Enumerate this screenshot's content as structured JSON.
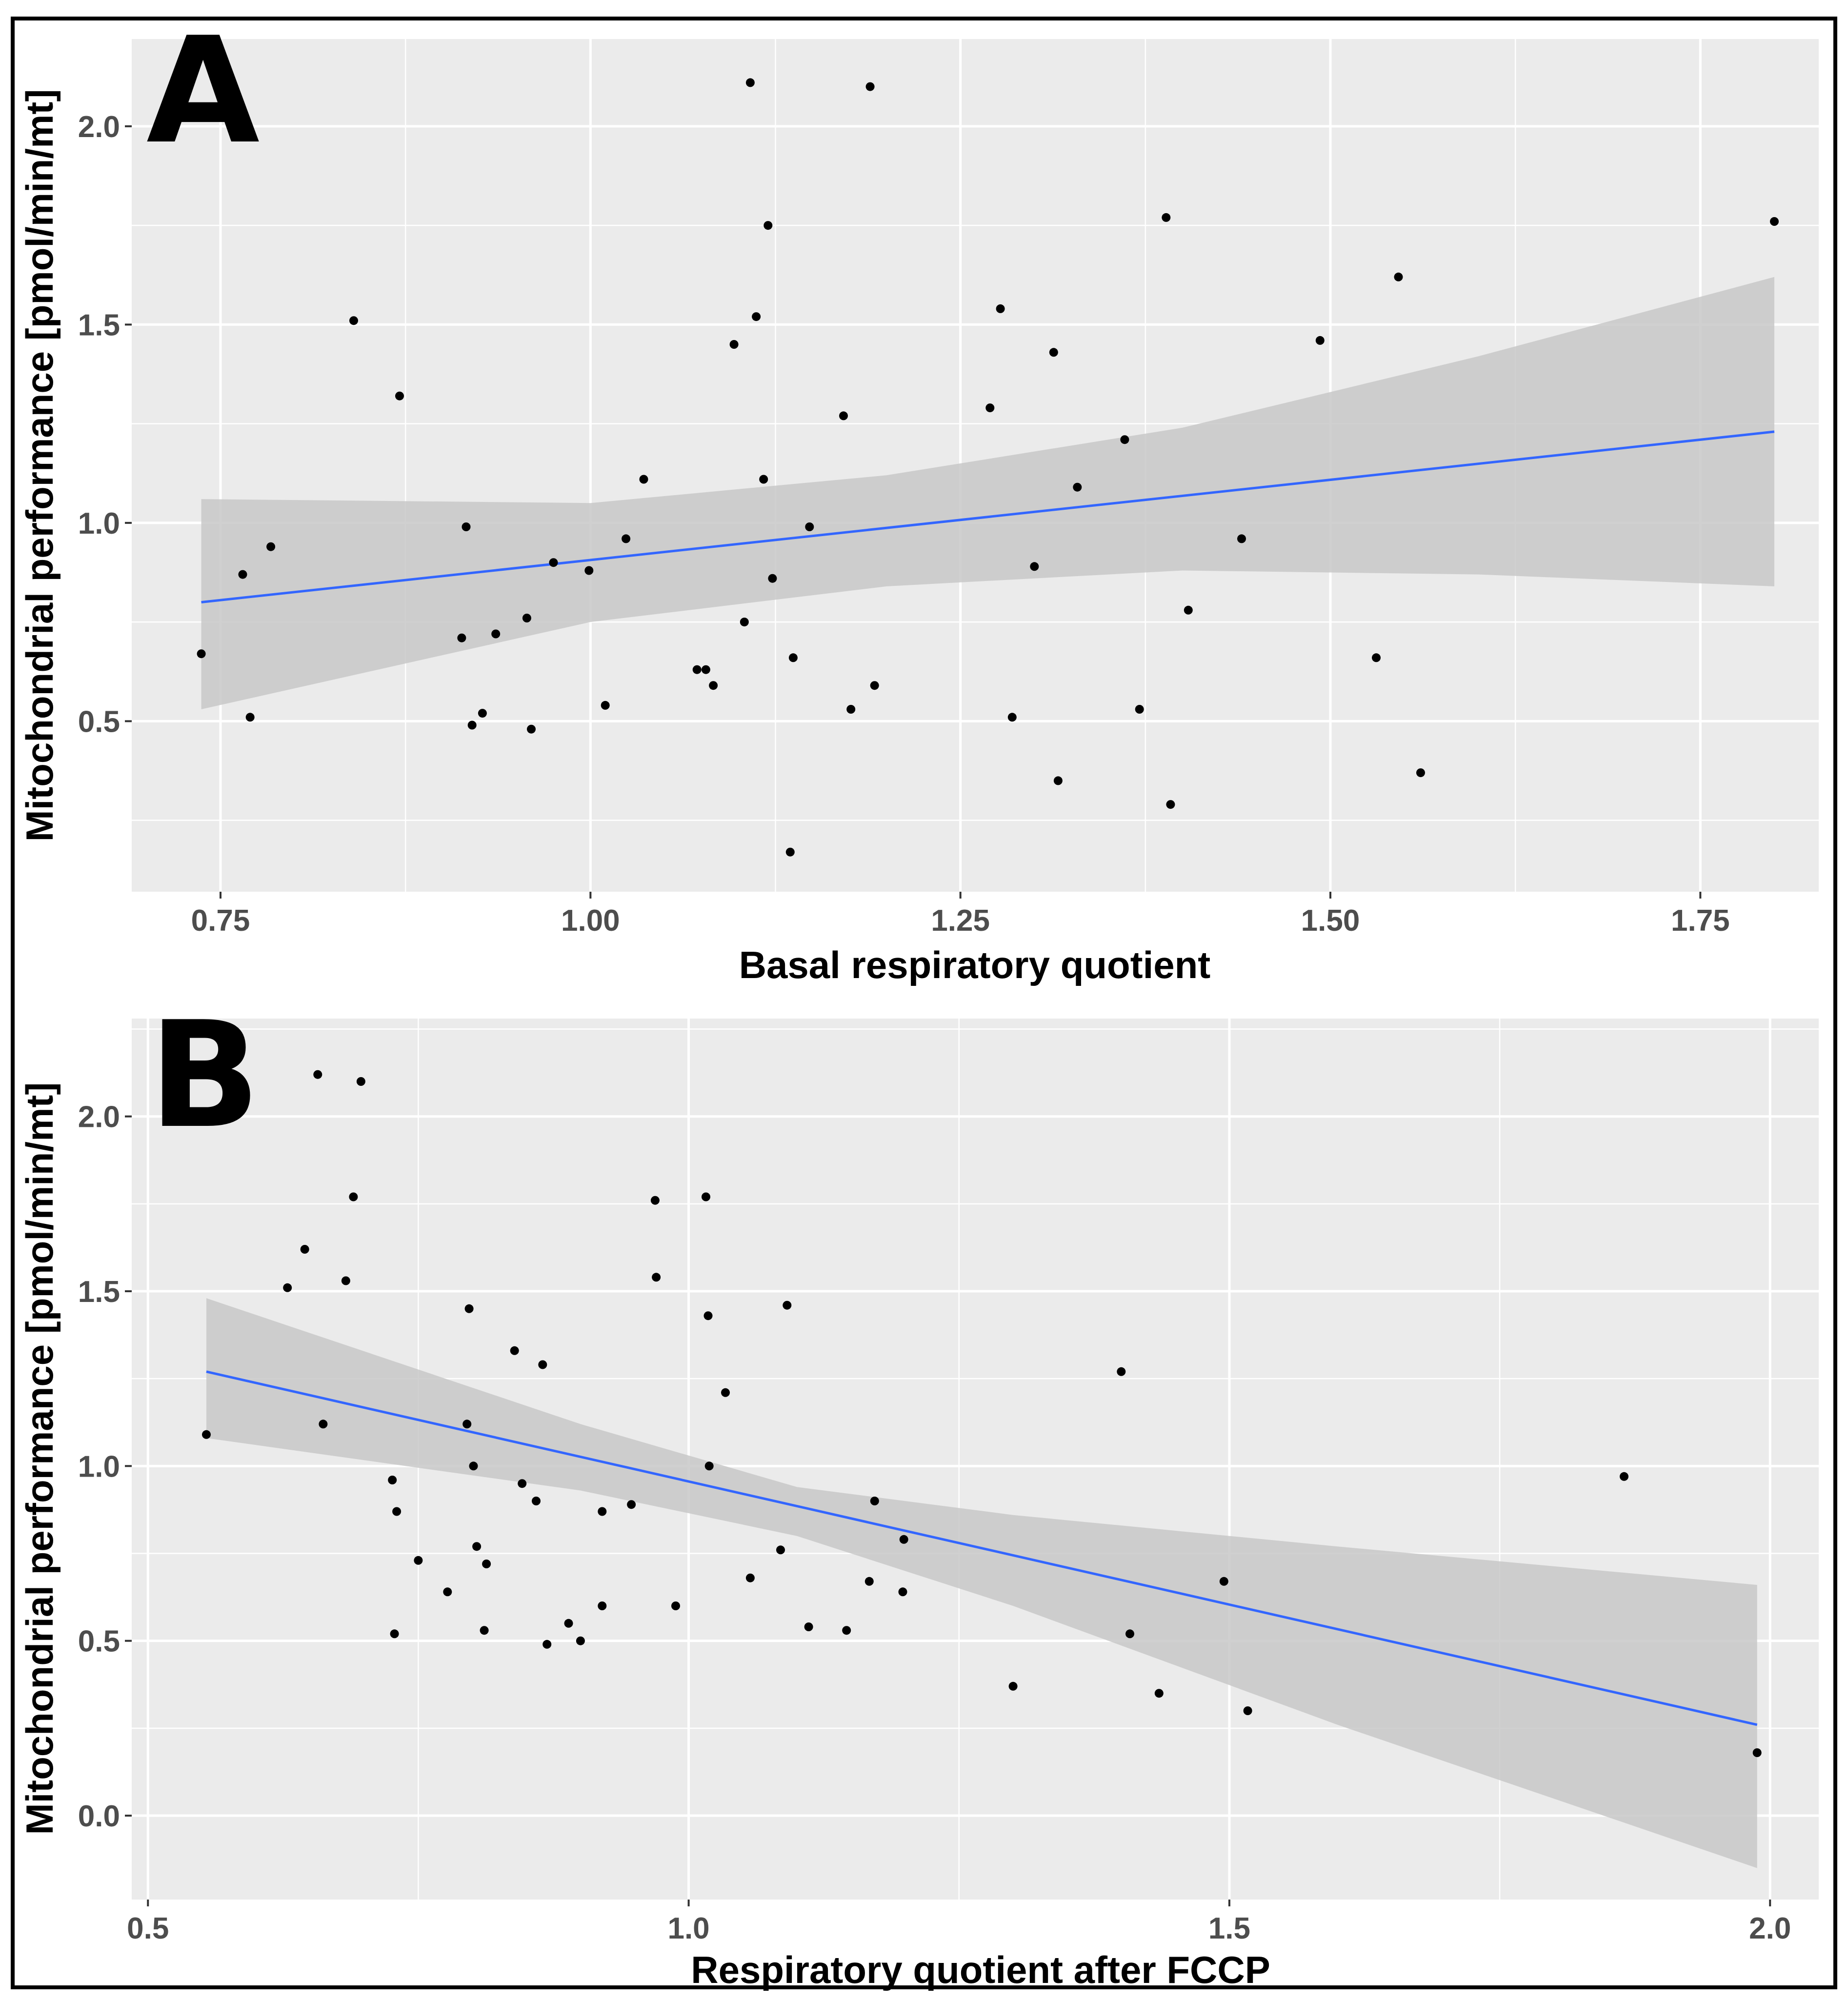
{
  "colors": {
    "panel_bg": "#ebebeb",
    "grid_major": "#ffffff",
    "ribbon": "#c8c8c8",
    "fit_line": "#3366ff",
    "point": "#000000",
    "frame": "#000000"
  },
  "chart_data": [
    {
      "type": "scatter",
      "panel_label": "A",
      "xlabel": "Basal respiratory quotient",
      "ylabel": "Mitochondrial performance [pmol/min/mt]",
      "xlim": [
        0.69,
        1.83
      ],
      "ylim": [
        0.07,
        2.22
      ],
      "x_ticks": [
        0.75,
        1.0,
        1.25,
        1.5,
        1.75
      ],
      "x_tick_labels": [
        "0.75",
        "1.00",
        "1.25",
        "1.50",
        "1.75"
      ],
      "y_ticks": [
        0.5,
        1.0,
        1.5,
        2.0
      ],
      "y_tick_labels": [
        "0.5",
        "1.0",
        "1.5",
        "2.0"
      ],
      "grid": true,
      "points": [
        [
          0.737,
          0.67
        ],
        [
          0.765,
          0.87
        ],
        [
          0.77,
          0.51
        ],
        [
          0.784,
          0.94
        ],
        [
          0.84,
          1.51
        ],
        [
          0.871,
          1.32
        ],
        [
          0.913,
          0.71
        ],
        [
          0.916,
          0.99
        ],
        [
          0.92,
          0.49
        ],
        [
          0.927,
          0.52
        ],
        [
          0.936,
          0.72
        ],
        [
          0.957,
          0.76
        ],
        [
          0.96,
          0.48
        ],
        [
          0.975,
          0.9
        ],
        [
          0.999,
          0.88
        ],
        [
          1.01,
          0.54
        ],
        [
          1.024,
          0.96
        ],
        [
          1.036,
          1.11
        ],
        [
          1.072,
          0.63
        ],
        [
          1.078,
          0.63
        ],
        [
          1.083,
          0.59
        ],
        [
          1.097,
          1.45
        ],
        [
          1.104,
          0.75
        ],
        [
          1.108,
          2.11
        ],
        [
          1.112,
          1.52
        ],
        [
          1.117,
          1.11
        ],
        [
          1.12,
          1.75
        ],
        [
          1.123,
          0.86
        ],
        [
          1.135,
          0.17
        ],
        [
          1.137,
          0.66
        ],
        [
          1.148,
          0.99
        ],
        [
          1.171,
          1.27
        ],
        [
          1.176,
          0.53
        ],
        [
          1.189,
          2.1
        ],
        [
          1.192,
          0.59
        ],
        [
          1.27,
          1.29
        ],
        [
          1.277,
          1.54
        ],
        [
          1.285,
          0.51
        ],
        [
          1.3,
          0.89
        ],
        [
          1.313,
          1.43
        ],
        [
          1.316,
          0.35
        ],
        [
          1.329,
          1.09
        ],
        [
          1.361,
          1.21
        ],
        [
          1.371,
          0.53
        ],
        [
          1.389,
          1.77
        ],
        [
          1.392,
          0.29
        ],
        [
          1.404,
          0.78
        ],
        [
          1.44,
          0.96
        ],
        [
          1.493,
          1.46
        ],
        [
          1.531,
          0.66
        ],
        [
          1.546,
          1.62
        ],
        [
          1.561,
          0.37
        ],
        [
          1.8,
          1.76
        ]
      ],
      "fit": {
        "x": [
          0.737,
          1.8
        ],
        "y": [
          0.8,
          1.23
        ]
      },
      "ribbon": {
        "x": [
          0.737,
          1.0,
          1.2,
          1.4,
          1.6,
          1.8
        ],
        "lower": [
          0.53,
          0.75,
          0.84,
          0.88,
          0.87,
          0.84
        ],
        "upper": [
          1.06,
          1.05,
          1.12,
          1.24,
          1.42,
          1.62
        ]
      }
    },
    {
      "type": "scatter",
      "panel_label": "B",
      "xlabel": "Respiratory quotient after FCCP",
      "ylabel": "Mitochondrial performance [pmol/min/mt]",
      "xlim": [
        0.485,
        2.045
      ],
      "ylim": [
        -0.24,
        2.28
      ],
      "x_ticks": [
        0.5,
        1.0,
        1.5,
        2.0
      ],
      "x_tick_labels": [
        "0.5",
        "1.0",
        "1.5",
        "2.0"
      ],
      "y_ticks": [
        0.0,
        0.5,
        1.0,
        1.5,
        2.0
      ],
      "y_tick_labels": [
        "0.0",
        "0.5",
        "1.0",
        "1.5",
        "2.0"
      ],
      "grid": true,
      "points": [
        [
          0.554,
          1.09
        ],
        [
          0.629,
          1.51
        ],
        [
          0.645,
          1.62
        ],
        [
          0.657,
          2.12
        ],
        [
          0.662,
          1.12
        ],
        [
          0.683,
          1.53
        ],
        [
          0.69,
          1.77
        ],
        [
          0.697,
          2.1
        ],
        [
          0.726,
          0.96
        ],
        [
          0.728,
          0.52
        ],
        [
          0.73,
          0.87
        ],
        [
          0.75,
          0.73
        ],
        [
          0.777,
          0.64
        ],
        [
          0.795,
          1.12
        ],
        [
          0.797,
          1.45
        ],
        [
          0.801,
          1.0
        ],
        [
          0.804,
          0.77
        ],
        [
          0.811,
          0.53
        ],
        [
          0.813,
          0.72
        ],
        [
          0.839,
          1.33
        ],
        [
          0.846,
          0.95
        ],
        [
          0.859,
          0.9
        ],
        [
          0.865,
          1.29
        ],
        [
          0.869,
          0.49
        ],
        [
          0.889,
          0.55
        ],
        [
          0.9,
          0.5
        ],
        [
          0.92,
          0.6
        ],
        [
          0.92,
          0.87
        ],
        [
          0.947,
          0.89
        ],
        [
          0.969,
          1.76
        ],
        [
          0.97,
          1.54
        ],
        [
          0.988,
          0.6
        ],
        [
          1.016,
          1.77
        ],
        [
          1.018,
          1.43
        ],
        [
          1.019,
          1.0
        ],
        [
          1.034,
          1.21
        ],
        [
          1.057,
          0.68
        ],
        [
          1.085,
          0.76
        ],
        [
          1.091,
          1.46
        ],
        [
          1.111,
          0.54
        ],
        [
          1.146,
          0.53
        ],
        [
          1.167,
          0.67
        ],
        [
          1.172,
          0.9
        ],
        [
          1.199,
          0.79
        ],
        [
          1.198,
          0.64
        ],
        [
          1.3,
          0.37
        ],
        [
          1.4,
          1.27
        ],
        [
          1.408,
          0.52
        ],
        [
          1.435,
          0.35
        ],
        [
          1.495,
          0.67
        ],
        [
          1.517,
          0.3
        ],
        [
          1.865,
          0.97
        ],
        [
          1.988,
          0.18
        ]
      ],
      "fit": {
        "x": [
          0.554,
          1.988
        ],
        "y": [
          1.27,
          0.26
        ]
      },
      "ribbon": {
        "x": [
          0.554,
          0.9,
          1.1,
          1.3,
          1.6,
          1.988
        ],
        "lower": [
          1.08,
          0.93,
          0.8,
          0.6,
          0.26,
          -0.15
        ],
        "upper": [
          1.48,
          1.12,
          0.94,
          0.86,
          0.77,
          0.66
        ]
      }
    }
  ]
}
